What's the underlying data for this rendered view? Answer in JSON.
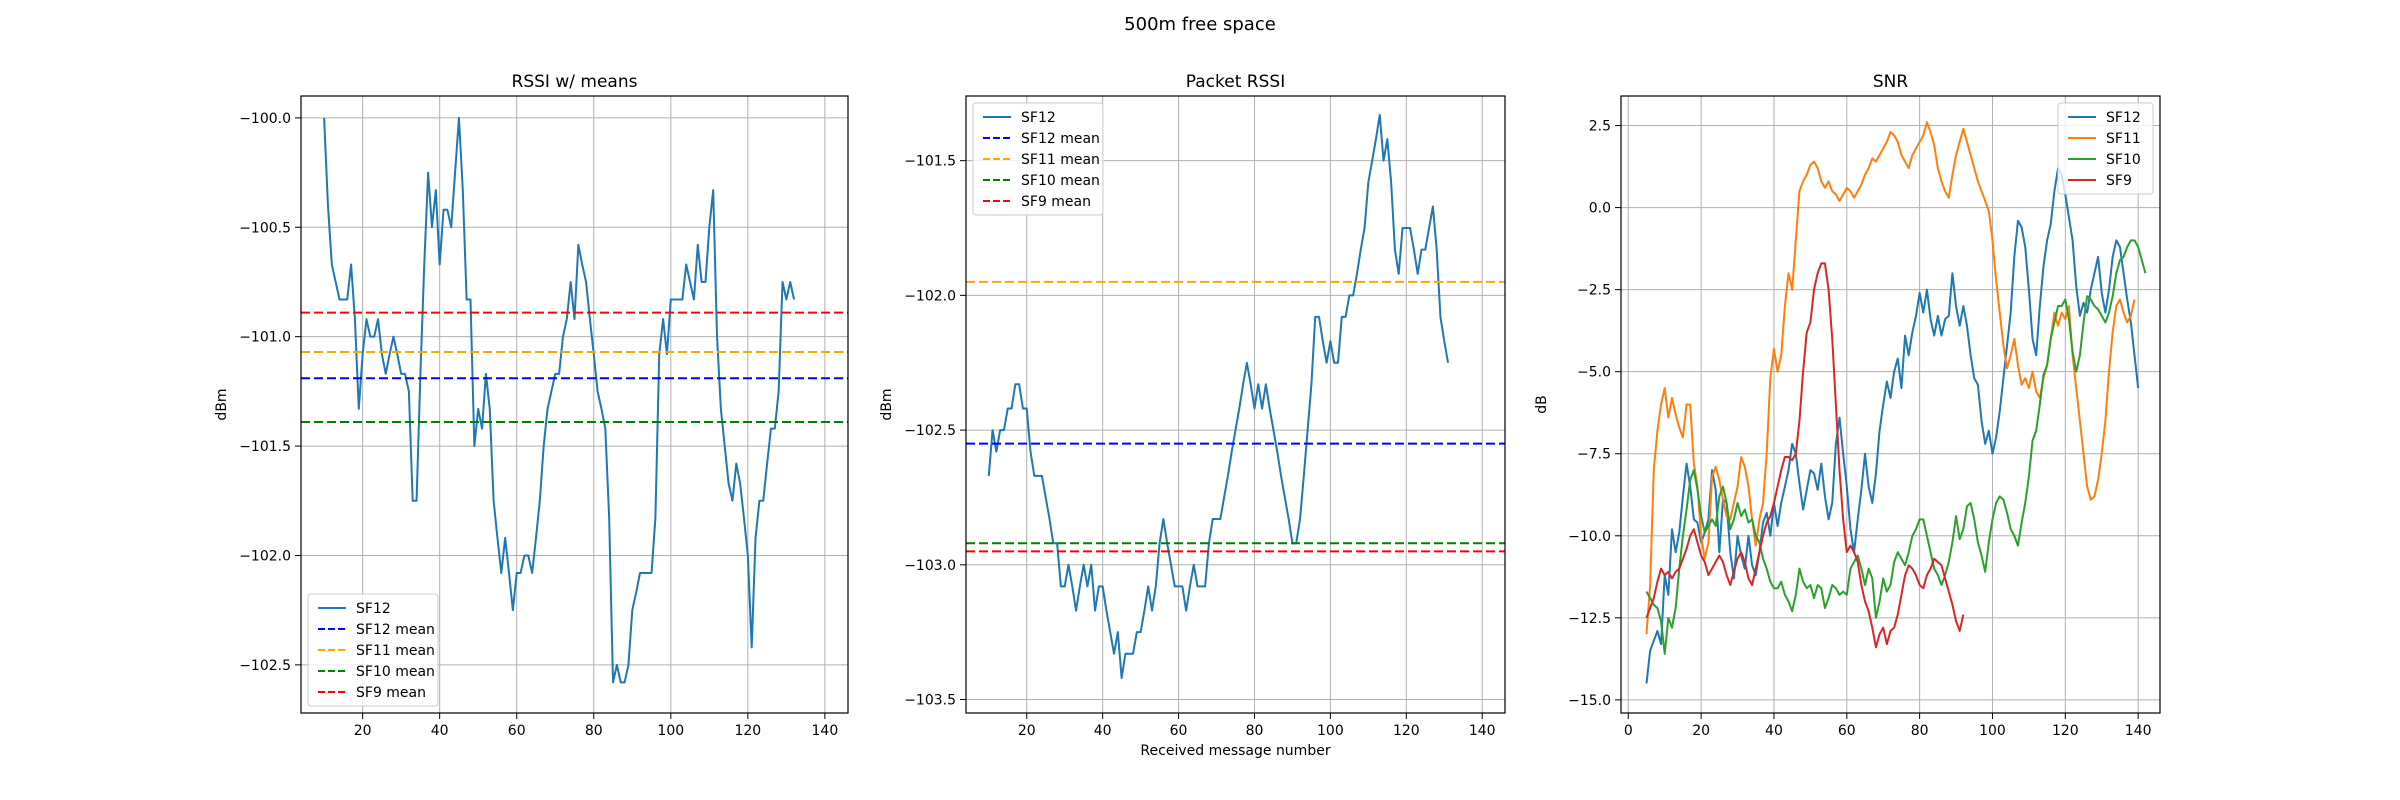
{
  "figure": {
    "suptitle": "500m free space"
  },
  "chart_data": [
    {
      "type": "line",
      "title": "RSSI w/ means",
      "xlabel": "",
      "ylabel": "dBm",
      "xlim": [
        4,
        146
      ],
      "ylim": [
        -102.72,
        -99.9
      ],
      "xticks": [
        20,
        40,
        60,
        80,
        100,
        120,
        140
      ],
      "yticks": [
        -100.0,
        -100.5,
        -101.0,
        -101.5,
        -102.0,
        -102.5
      ],
      "ytick_decimals": 1,
      "grid": true,
      "legend": "lower-left",
      "series": [
        {
          "name": "SF12",
          "color": "#1f77b4",
          "style": "solid",
          "x_start": 10,
          "values": [
            -100.0,
            -100.4,
            -100.67,
            -100.75,
            -100.83,
            -100.83,
            -100.83,
            -100.67,
            -100.92,
            -101.33,
            -101.08,
            -100.92,
            -101.0,
            -101.0,
            -100.92,
            -101.08,
            -101.17,
            -101.08,
            -101.0,
            -101.08,
            -101.17,
            -101.17,
            -101.25,
            -101.75,
            -101.75,
            -101.17,
            -100.67,
            -100.25,
            -100.5,
            -100.33,
            -100.67,
            -100.42,
            -100.42,
            -100.5,
            -100.25,
            -100.0,
            -100.33,
            -100.83,
            -100.83,
            -101.5,
            -101.33,
            -101.42,
            -101.17,
            -101.33,
            -101.75,
            -101.92,
            -102.08,
            -101.92,
            -102.08,
            -102.25,
            -102.08,
            -102.08,
            -102.0,
            -102.0,
            -102.08,
            -101.92,
            -101.75,
            -101.5,
            -101.33,
            -101.25,
            -101.17,
            -101.17,
            -101.0,
            -100.92,
            -100.75,
            -100.92,
            -100.58,
            -100.67,
            -100.75,
            -100.92,
            -101.08,
            -101.25,
            -101.33,
            -101.42,
            -101.83,
            -102.58,
            -102.5,
            -102.58,
            -102.58,
            -102.5,
            -102.25,
            -102.17,
            -102.08,
            -102.08,
            -102.08,
            -102.08,
            -101.83,
            -101.08,
            -100.92,
            -101.08,
            -100.83,
            -100.83,
            -100.83,
            -100.83,
            -100.67,
            -100.75,
            -100.83,
            -100.58,
            -100.75,
            -100.75,
            -100.5,
            -100.33,
            -101.0,
            -101.33,
            -101.5,
            -101.67,
            -101.75,
            -101.58,
            -101.67,
            -101.83,
            -102.0,
            -102.42,
            -101.92,
            -101.75,
            -101.75,
            -101.58,
            -101.42,
            -101.42,
            -101.25,
            -100.75,
            -100.83,
            -100.75,
            -100.83
          ]
        },
        {
          "name": "SF12 mean",
          "color": "#0000ff",
          "style": "dashed",
          "hline": -101.19
        },
        {
          "name": "SF11 mean",
          "color": "#ffa500",
          "style": "dashed",
          "hline": -101.07
        },
        {
          "name": "SF10 mean",
          "color": "#008000",
          "style": "dashed",
          "hline": -101.39
        },
        {
          "name": "SF9 mean",
          "color": "#ff0000",
          "style": "dashed",
          "hline": -100.89
        }
      ]
    },
    {
      "type": "line",
      "title": "Packet RSSI",
      "xlabel": "Received message number",
      "ylabel": "dBm",
      "xlim": [
        4,
        146
      ],
      "ylim": [
        -103.55,
        -101.26
      ],
      "xticks": [
        20,
        40,
        60,
        80,
        100,
        120,
        140
      ],
      "yticks": [
        -101.5,
        -102.0,
        -102.5,
        -103.0,
        -103.5
      ],
      "ytick_decimals": 1,
      "grid": true,
      "legend": "upper-left",
      "series": [
        {
          "name": "SF12",
          "color": "#1f77b4",
          "style": "solid",
          "x_start": 10,
          "values": [
            -102.67,
            -102.5,
            -102.58,
            -102.5,
            -102.5,
            -102.42,
            -102.42,
            -102.33,
            -102.33,
            -102.42,
            -102.42,
            -102.58,
            -102.67,
            -102.67,
            -102.67,
            -102.75,
            -102.83,
            -102.92,
            -102.92,
            -103.08,
            -103.08,
            -103.0,
            -103.08,
            -103.17,
            -103.08,
            -103.0,
            -103.08,
            -103.0,
            -103.17,
            -103.08,
            -103.08,
            -103.17,
            -103.25,
            -103.33,
            -103.25,
            -103.42,
            -103.33,
            -103.33,
            -103.33,
            -103.25,
            -103.25,
            -103.17,
            -103.08,
            -103.17,
            -103.08,
            -102.92,
            -102.83,
            -102.92,
            -103.0,
            -103.08,
            -103.08,
            -103.08,
            -103.17,
            -103.08,
            -103.0,
            -103.08,
            -103.08,
            -103.08,
            -102.92,
            -102.83,
            -102.83,
            -102.83,
            -102.75,
            -102.67,
            -102.58,
            -102.5,
            -102.42,
            -102.33,
            -102.25,
            -102.33,
            -102.42,
            -102.33,
            -102.42,
            -102.33,
            -102.42,
            -102.5,
            -102.58,
            -102.67,
            -102.75,
            -102.83,
            -102.92,
            -102.92,
            -102.83,
            -102.67,
            -102.5,
            -102.33,
            -102.08,
            -102.08,
            -102.17,
            -102.25,
            -102.17,
            -102.25,
            -102.25,
            -102.08,
            -102.08,
            -102.0,
            -102.0,
            -101.92,
            -101.83,
            -101.75,
            -101.58,
            -101.5,
            -101.42,
            -101.33,
            -101.5,
            -101.42,
            -101.58,
            -101.83,
            -101.92,
            -101.75,
            -101.75,
            -101.75,
            -101.83,
            -101.92,
            -101.83,
            -101.83,
            -101.75,
            -101.67,
            -101.83,
            -102.08,
            -102.17,
            -102.25
          ]
        },
        {
          "name": "SF12 mean",
          "color": "#0000ff",
          "style": "dashed",
          "hline": -102.55
        },
        {
          "name": "SF11 mean",
          "color": "#ffa500",
          "style": "dashed",
          "hline": -101.95
        },
        {
          "name": "SF10 mean",
          "color": "#008000",
          "style": "dashed",
          "hline": -102.92
        },
        {
          "name": "SF9 mean",
          "color": "#ff0000",
          "style": "dashed",
          "hline": -102.95
        }
      ]
    },
    {
      "type": "line",
      "title": "SNR",
      "xlabel": "",
      "ylabel": "dB",
      "xlim": [
        -2,
        146
      ],
      "ylim": [
        -15.4,
        3.4
      ],
      "xticks": [
        0,
        20,
        40,
        60,
        80,
        100,
        120,
        140
      ],
      "yticks": [
        2.5,
        0.0,
        -2.5,
        -5.0,
        -7.5,
        -10.0,
        -12.5,
        -15.0
      ],
      "ytick_decimals": 1,
      "grid": true,
      "legend": "upper-right",
      "series": [
        {
          "name": "SF12",
          "color": "#1f77b4",
          "style": "solid",
          "x_start": 5,
          "values": [
            -14.5,
            -13.5,
            -13.2,
            -12.9,
            -13.3,
            -11.2,
            -11.8,
            -9.8,
            -10.5,
            -9.9,
            -8.8,
            -7.8,
            -8.5,
            -9.5,
            -9.6,
            -10.2,
            -9.9,
            -9.5,
            -8.0,
            -8.6,
            -10.5,
            -8.9,
            -9.0,
            -10.5,
            -11.3,
            -10.0,
            -10.6,
            -11.0,
            -10.0,
            -10.9,
            -11.2,
            -10.5,
            -9.6,
            -9.3,
            -10.0,
            -9.0,
            -9.7,
            -9.0,
            -8.5,
            -8.0,
            -7.2,
            -7.5,
            -8.4,
            -9.2,
            -8.6,
            -8.0,
            -8.1,
            -8.6,
            -7.8,
            -8.8,
            -9.5,
            -9.0,
            -7.2,
            -6.4,
            -7.5,
            -8.5,
            -9.8,
            -10.5,
            -9.5,
            -8.6,
            -7.5,
            -8.5,
            -9.0,
            -8.1,
            -6.8,
            -6.0,
            -5.3,
            -5.8,
            -5.0,
            -4.6,
            -5.5,
            -3.9,
            -4.5,
            -3.8,
            -3.3,
            -2.6,
            -3.2,
            -2.5,
            -3.4,
            -3.9,
            -3.3,
            -3.9,
            -3.4,
            -3.3,
            -2.0,
            -3.0,
            -3.6,
            -3.0,
            -3.6,
            -4.5,
            -5.2,
            -5.4,
            -6.5,
            -7.2,
            -6.8,
            -7.5,
            -7.0,
            -6.2,
            -5.2,
            -4.2,
            -3.2,
            -1.5,
            -0.4,
            -0.6,
            -1.2,
            -2.5,
            -4.0,
            -4.5,
            -3.0,
            -1.8,
            -1.0,
            -0.5,
            0.5,
            1.2,
            1.0,
            0.4,
            -0.3,
            -1.0,
            -2.4,
            -3.3,
            -2.9,
            -3.2,
            -2.5,
            -2.0,
            -1.5,
            -2.6,
            -3.2,
            -2.5,
            -1.5,
            -1.0,
            -1.2,
            -2.0,
            -2.8,
            -3.5,
            -4.5,
            -5.5
          ]
        },
        {
          "name": "SF11",
          "color": "#ff7f0e",
          "style": "solid",
          "x_start": 5,
          "values": [
            -13.0,
            -11.5,
            -8.0,
            -6.8,
            -6.0,
            -5.5,
            -6.4,
            -5.8,
            -6.3,
            -6.7,
            -7.0,
            -6.0,
            -6.0,
            -7.8,
            -8.5,
            -10.0,
            -10.7,
            -10.2,
            -8.2,
            -7.9,
            -8.3,
            -8.9,
            -9.4,
            -9.5,
            -9.0,
            -8.5,
            -7.6,
            -7.9,
            -8.5,
            -9.5,
            -10.3,
            -9.5,
            -9.0,
            -7.5,
            -5.2,
            -4.3,
            -5.0,
            -4.5,
            -3.0,
            -2.0,
            -2.5,
            -1.0,
            0.5,
            0.8,
            1.0,
            1.3,
            1.4,
            1.2,
            0.8,
            0.6,
            0.8,
            0.5,
            0.4,
            0.2,
            0.4,
            0.6,
            0.5,
            0.3,
            0.5,
            0.7,
            1.0,
            1.2,
            1.5,
            1.4,
            1.6,
            1.8,
            2.0,
            2.3,
            2.2,
            2.0,
            1.6,
            1.4,
            1.2,
            1.6,
            1.8,
            2.0,
            2.2,
            2.6,
            2.3,
            1.9,
            1.2,
            0.8,
            0.5,
            0.3,
            1.0,
            1.6,
            2.0,
            2.4,
            2.0,
            1.6,
            1.2,
            0.8,
            0.5,
            0.2,
            -0.1,
            -1.0,
            -2.2,
            -3.2,
            -4.2,
            -4.9,
            -4.5,
            -4.0,
            -4.8,
            -5.4,
            -5.2,
            -5.5,
            -5.0,
            -5.6,
            -5.8,
            -5.2,
            -4.8,
            -4.0,
            -3.2,
            -3.6,
            -3.2,
            -3.4,
            -3.0,
            -4.5,
            -5.5,
            -6.5,
            -7.5,
            -8.5,
            -8.9,
            -8.8,
            -8.3,
            -7.5,
            -6.5,
            -5.0,
            -3.8,
            -3.0,
            -2.8,
            -3.2,
            -3.5,
            -3.3,
            -2.8
          ]
        },
        {
          "name": "SF10",
          "color": "#2ca02c",
          "style": "solid",
          "x_start": 5,
          "values": [
            -11.7,
            -11.9,
            -12.1,
            -12.2,
            -12.6,
            -13.6,
            -12.5,
            -12.8,
            -12.2,
            -11.0,
            -10.0,
            -9.2,
            -8.3,
            -8.0,
            -8.6,
            -9.4,
            -9.9,
            -9.7,
            -9.5,
            -9.7,
            -8.8,
            -8.5,
            -9.0,
            -9.8,
            -9.5,
            -9.0,
            -9.4,
            -9.2,
            -9.6,
            -9.5,
            -10.0,
            -10.2,
            -10.7,
            -11.0,
            -11.4,
            -11.6,
            -11.6,
            -11.4,
            -11.8,
            -12.0,
            -12.3,
            -11.8,
            -11.0,
            -11.4,
            -11.6,
            -11.5,
            -11.9,
            -11.5,
            -11.6,
            -12.2,
            -11.9,
            -11.5,
            -11.6,
            -11.8,
            -11.7,
            -11.8,
            -11.0,
            -10.8,
            -10.6,
            -11.0,
            -11.5,
            -11.0,
            -11.3,
            -12.5,
            -12.0,
            -11.3,
            -11.7,
            -11.5,
            -10.8,
            -10.5,
            -10.7,
            -10.9,
            -10.5,
            -10.0,
            -9.8,
            -9.5,
            -9.5,
            -10.0,
            -10.5,
            -11.0,
            -11.2,
            -11.5,
            -11.2,
            -10.8,
            -10.2,
            -9.4,
            -10.1,
            -9.8,
            -9.1,
            -9.0,
            -9.5,
            -10.2,
            -10.6,
            -11.1,
            -10.2,
            -9.5,
            -9.0,
            -8.8,
            -8.9,
            -9.3,
            -9.8,
            -10.0,
            -10.3,
            -9.6,
            -9.0,
            -8.2,
            -7.1,
            -6.8,
            -6.0,
            -5.1,
            -4.8,
            -4.0,
            -3.5,
            -3.0,
            -3.0,
            -2.8,
            -3.4,
            -4.4,
            -5.0,
            -4.5,
            -3.5,
            -2.7,
            -2.8,
            -3.0,
            -3.1,
            -3.3,
            -3.5,
            -3.2,
            -2.7,
            -2.0,
            -1.6,
            -1.5,
            -1.2,
            -1.0,
            -1.0,
            -1.2,
            -1.6,
            -2.0
          ]
        },
        {
          "name": "SF9",
          "color": "#d62728",
          "style": "solid",
          "x_start": 5,
          "values": [
            -12.5,
            -12.2,
            -11.9,
            -11.4,
            -11.0,
            -11.2,
            -11.1,
            -11.3,
            -11.1,
            -11.0,
            -10.7,
            -10.4,
            -10.0,
            -9.8,
            -10.2,
            -10.6,
            -10.8,
            -11.2,
            -11.0,
            -10.8,
            -10.6,
            -10.8,
            -11.2,
            -11.5,
            -11.1,
            -10.7,
            -10.5,
            -10.8,
            -11.3,
            -11.5,
            -11.0,
            -10.5,
            -10.0,
            -9.6,
            -9.4,
            -9.0,
            -8.5,
            -8.0,
            -7.6,
            -7.6,
            -7.7,
            -7.5,
            -6.5,
            -5.0,
            -3.8,
            -3.5,
            -2.5,
            -2.0,
            -1.7,
            -1.7,
            -2.5,
            -4.0,
            -6.0,
            -8.0,
            -9.5,
            -10.5,
            -10.3,
            -10.5,
            -10.8,
            -11.5,
            -12.0,
            -12.3,
            -12.8,
            -13.4,
            -13.0,
            -12.8,
            -13.3,
            -12.9,
            -12.8,
            -12.4,
            -11.8,
            -11.2,
            -10.9,
            -11.0,
            -11.2,
            -11.5,
            -11.6,
            -11.2,
            -11.0,
            -10.7,
            -10.8,
            -10.9,
            -11.3,
            -11.7,
            -12.1,
            -12.6,
            -12.9,
            -12.4
          ]
        }
      ]
    }
  ]
}
